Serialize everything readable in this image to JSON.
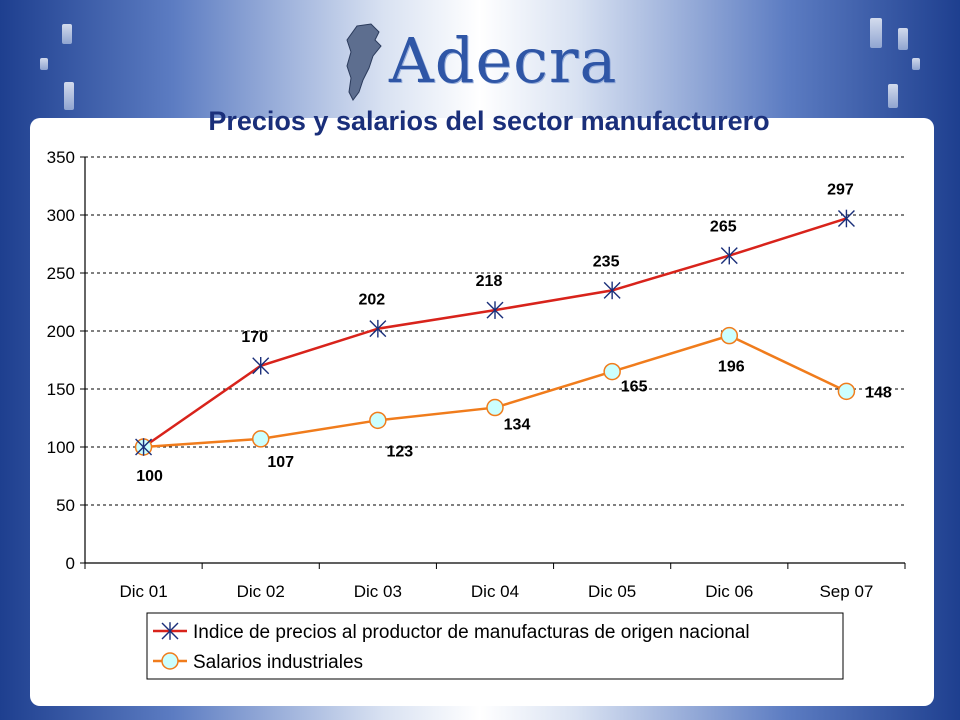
{
  "header": {
    "logo_text": "Adecra",
    "logo_icon": "argentina-map-icon"
  },
  "colors": {
    "series1": "#d8231b",
    "series2": "#f07c1c",
    "marker2_fill": "#ccffff",
    "grid": "#000000",
    "title": "#1a2f7a"
  },
  "chart_data": {
    "type": "line",
    "title": "Precios y salarios del sector manufacturero",
    "categories": [
      "Dic 01",
      "Dic 02",
      "Dic 03",
      "Dic 04",
      "Dic 05",
      "Dic 06",
      "Sep 07"
    ],
    "series": [
      {
        "name": "Indice de precios al productor de manufacturas de origen nacional",
        "values": [
          100,
          170,
          202,
          218,
          235,
          265,
          297
        ],
        "marker": "asterisk"
      },
      {
        "name": "Salarios industriales",
        "values": [
          100,
          107,
          123,
          134,
          165,
          196,
          148
        ],
        "marker": "circle"
      }
    ],
    "y_ticks": [
      0,
      50,
      100,
      150,
      200,
      250,
      300,
      350
    ],
    "ylim": [
      0,
      350
    ],
    "grid": "horizontal dashed",
    "legend_position": "bottom",
    "xlabel": "",
    "ylabel": ""
  }
}
